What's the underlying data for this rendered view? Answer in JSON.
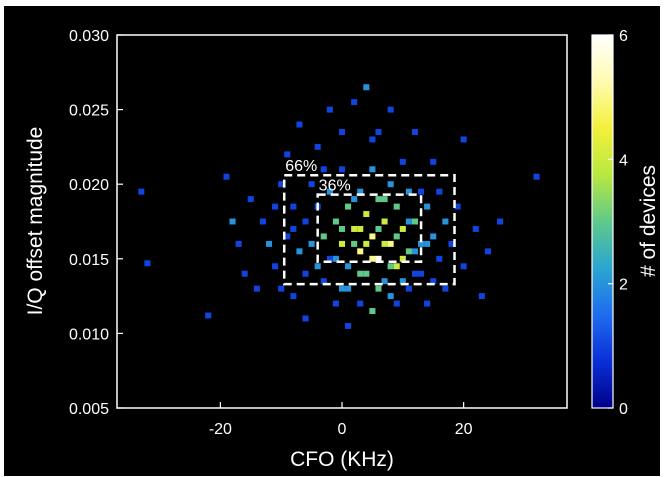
{
  "chart_data": {
    "type": "heatmap",
    "title": "",
    "xlabel": "CFO (KHz)",
    "ylabel": "I/Q offset magnitude",
    "xlim": [
      -37,
      37
    ],
    "ylim": [
      0.005,
      0.03
    ],
    "x_ticks": [
      {
        "value": -20,
        "label": "-20"
      },
      {
        "value": 0,
        "label": "0"
      },
      {
        "value": 20,
        "label": "20"
      }
    ],
    "y_ticks": [
      {
        "value": 0.005,
        "label": "0.005"
      },
      {
        "value": 0.01,
        "label": "0.010"
      },
      {
        "value": 0.015,
        "label": "0.015"
      },
      {
        "value": 0.02,
        "label": "0.020"
      },
      {
        "value": 0.025,
        "label": "0.025"
      },
      {
        "value": 0.03,
        "label": "0.030"
      }
    ],
    "colorbar": {
      "label": "# of devices",
      "range": [
        0,
        6
      ],
      "ticks": [
        {
          "value": 0,
          "label": "0"
        },
        {
          "value": 2,
          "label": "2"
        },
        {
          "value": 4,
          "label": "4"
        },
        {
          "value": 6,
          "label": "6"
        }
      ],
      "colors": [
        "#00008a",
        "#0a2fd6",
        "#1f6cf0",
        "#2aa6d0",
        "#5fc98a",
        "#b7e840",
        "#f4f03a",
        "#fffbb0",
        "#ffffff"
      ]
    },
    "regions": [
      {
        "label": "66%",
        "x_range": [
          -9.5,
          18.5
        ],
        "y_range": [
          0.0133,
          0.0206
        ]
      },
      {
        "label": "36%",
        "x_range": [
          -4,
          13
        ],
        "y_range": [
          0.0148,
          0.0193
        ]
      }
    ],
    "background_color": "#000000",
    "frame_color": "#ffffff",
    "grid": false,
    "bin_size": {
      "x": 1.0,
      "y": 0.0004
    },
    "cells": [
      [
        -33,
        0.0195,
        1
      ],
      [
        -32,
        0.0147,
        1
      ],
      [
        -22,
        0.0112,
        1
      ],
      [
        -19,
        0.0205,
        1
      ],
      [
        -18,
        0.0175,
        2
      ],
      [
        -17,
        0.016,
        1
      ],
      [
        -16,
        0.014,
        1
      ],
      [
        -15,
        0.019,
        1
      ],
      [
        -14,
        0.013,
        1
      ],
      [
        -13,
        0.0175,
        1
      ],
      [
        -12,
        0.016,
        2
      ],
      [
        -11,
        0.0145,
        1
      ],
      [
        -11,
        0.0185,
        1
      ],
      [
        -10,
        0.02,
        1
      ],
      [
        -10,
        0.013,
        1
      ],
      [
        -9,
        0.0165,
        1
      ],
      [
        -9,
        0.022,
        1
      ],
      [
        -8,
        0.0185,
        1
      ],
      [
        -8,
        0.0125,
        1
      ],
      [
        -7,
        0.0155,
        2
      ],
      [
        -7,
        0.024,
        1
      ],
      [
        -6,
        0.0175,
        1
      ],
      [
        -6,
        0.011,
        1
      ],
      [
        -5,
        0.02,
        1
      ],
      [
        -5,
        0.016,
        2
      ],
      [
        -4,
        0.0185,
        1
      ],
      [
        -4,
        0.0225,
        1
      ],
      [
        -3,
        0.0165,
        3
      ],
      [
        -3,
        0.0135,
        1
      ],
      [
        -2,
        0.0195,
        2
      ],
      [
        -2,
        0.015,
        1
      ],
      [
        -2,
        0.025,
        1
      ],
      [
        -1,
        0.0175,
        3
      ],
      [
        -1,
        0.012,
        1
      ],
      [
        0,
        0.016,
        4
      ],
      [
        0,
        0.021,
        1
      ],
      [
        0,
        0.0235,
        1
      ],
      [
        1,
        0.0185,
        3
      ],
      [
        1,
        0.0145,
        2
      ],
      [
        1,
        0.0105,
        1
      ],
      [
        2,
        0.017,
        4
      ],
      [
        2,
        0.0255,
        1
      ],
      [
        3,
        0.0155,
        5
      ],
      [
        3,
        0.0195,
        2
      ],
      [
        3,
        0.012,
        1
      ],
      [
        4,
        0.018,
        4
      ],
      [
        4,
        0.014,
        3
      ],
      [
        4,
        0.0265,
        2
      ],
      [
        5,
        0.0165,
        5
      ],
      [
        5,
        0.021,
        2
      ],
      [
        5,
        0.0115,
        3
      ],
      [
        6,
        0.015,
        6
      ],
      [
        6,
        0.019,
        3
      ],
      [
        6,
        0.0235,
        1
      ],
      [
        7,
        0.0175,
        4
      ],
      [
        7,
        0.0135,
        2
      ],
      [
        8,
        0.016,
        5
      ],
      [
        8,
        0.02,
        2
      ],
      [
        8,
        0.025,
        1
      ],
      [
        9,
        0.0145,
        4
      ],
      [
        9,
        0.0185,
        3
      ],
      [
        9,
        0.012,
        1
      ],
      [
        10,
        0.017,
        4
      ],
      [
        10,
        0.0215,
        1
      ],
      [
        11,
        0.0155,
        3
      ],
      [
        11,
        0.0195,
        2
      ],
      [
        11,
        0.013,
        1
      ],
      [
        12,
        0.0175,
        3
      ],
      [
        12,
        0.0235,
        1
      ],
      [
        13,
        0.016,
        2
      ],
      [
        13,
        0.014,
        1
      ],
      [
        14,
        0.0185,
        2
      ],
      [
        14,
        0.012,
        1
      ],
      [
        15,
        0.0165,
        2
      ],
      [
        15,
        0.0215,
        1
      ],
      [
        16,
        0.015,
        1
      ],
      [
        16,
        0.0195,
        1
      ],
      [
        17,
        0.0175,
        2
      ],
      [
        17,
        0.013,
        1
      ],
      [
        18,
        0.016,
        1
      ],
      [
        19,
        0.0185,
        1
      ],
      [
        20,
        0.0145,
        1
      ],
      [
        20,
        0.023,
        1
      ],
      [
        22,
        0.017,
        1
      ],
      [
        23,
        0.0125,
        1
      ],
      [
        24,
        0.0155,
        1
      ],
      [
        26,
        0.0175,
        1
      ],
      [
        32,
        0.0205,
        1
      ],
      [
        2,
        0.016,
        3
      ],
      [
        3,
        0.017,
        4
      ],
      [
        5,
        0.015,
        5
      ],
      [
        7,
        0.016,
        4
      ],
      [
        9,
        0.0165,
        3
      ],
      [
        10,
        0.015,
        4
      ],
      [
        0,
        0.017,
        3
      ],
      [
        -1,
        0.015,
        2
      ],
      [
        4,
        0.016,
        4
      ],
      [
        6,
        0.017,
        3
      ],
      [
        8,
        0.0145,
        3
      ],
      [
        12,
        0.0155,
        2
      ],
      [
        1,
        0.013,
        2
      ],
      [
        6,
        0.013,
        3
      ],
      [
        10,
        0.0135,
        2
      ],
      [
        2,
        0.019,
        2
      ],
      [
        7,
        0.019,
        3
      ],
      [
        11,
        0.0175,
        2
      ],
      [
        -6,
        0.014,
        1
      ],
      [
        -8,
        0.017,
        1
      ],
      [
        13,
        0.0195,
        1
      ],
      [
        15,
        0.0135,
        1
      ],
      [
        5,
        0.023,
        1
      ],
      [
        -3,
        0.021,
        1
      ],
      [
        0,
        0.013,
        2
      ],
      [
        3,
        0.014,
        3
      ],
      [
        8,
        0.0125,
        2
      ],
      [
        12,
        0.014,
        1
      ],
      [
        -4,
        0.0145,
        2
      ],
      [
        14,
        0.016,
        2
      ]
    ]
  }
}
